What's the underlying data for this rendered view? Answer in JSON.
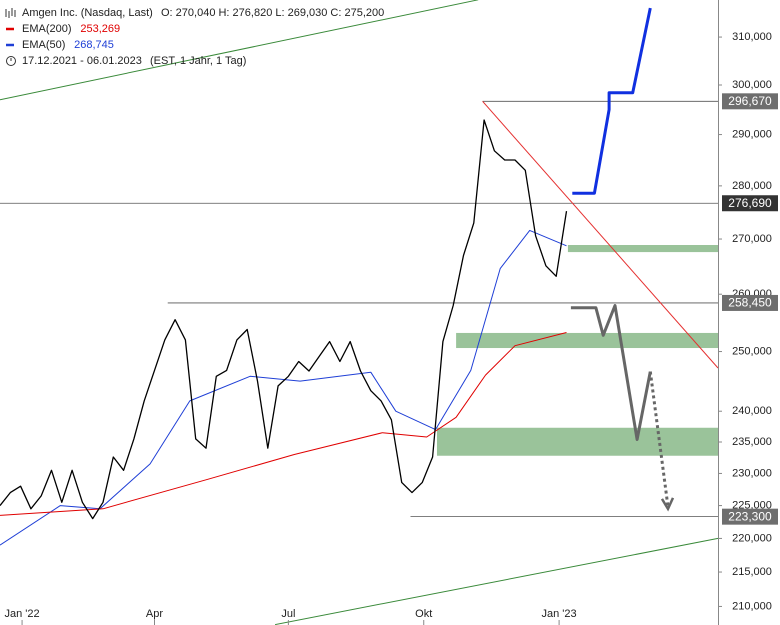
{
  "chart_data": {
    "type": "line",
    "title": "Amgen Inc. (Nasdaq, Last)",
    "ohlc": "O: 270,040  H: 276,820  L: 269,030  C: 275,200",
    "period": "17.12.2021 - 06.01.2023",
    "period_note": "(EST, 1 Jahr, 1 Tag)",
    "y_scale": "log",
    "xlim": [
      0,
      488
    ],
    "ylim": [
      207350,
      317960
    ],
    "xticks": [
      {
        "value": 15,
        "label": "Jan '22"
      },
      {
        "value": 105,
        "label": "Apr"
      },
      {
        "value": 196,
        "label": "Jul"
      },
      {
        "value": 288,
        "label": "Okt"
      },
      {
        "value": 380,
        "label": "Jan '23"
      }
    ],
    "yticks": [
      {
        "value": 310000,
        "label": "310,000"
      },
      {
        "value": 300000,
        "label": "300,000"
      },
      {
        "value": 290000,
        "label": "290,000"
      },
      {
        "value": 280000,
        "label": "280,000"
      },
      {
        "value": 270000,
        "label": "270,000"
      },
      {
        "value": 260000,
        "label": "260,000"
      },
      {
        "value": 250000,
        "label": "250,000"
      },
      {
        "value": 240000,
        "label": "240,000"
      },
      {
        "value": 235000,
        "label": "235,000"
      },
      {
        "value": 230000,
        "label": "230,000"
      },
      {
        "value": 225000,
        "label": "225,000"
      },
      {
        "value": 220000,
        "label": "220,000"
      },
      {
        "value": 215000,
        "label": "215,000"
      },
      {
        "value": 210000,
        "label": "210,000"
      }
    ],
    "series": [
      {
        "name": "Amgen Inc. (Nasdaq, Last)",
        "color": "#000000",
        "width": 1.3,
        "x": [
          0,
          7,
          14,
          21,
          28,
          35,
          42,
          49,
          56,
          63,
          70,
          77,
          84,
          91,
          98,
          105,
          112,
          119,
          126,
          133,
          140,
          147,
          154,
          161,
          168,
          175,
          182,
          189,
          196,
          203,
          210,
          217,
          224,
          231,
          238,
          245,
          252,
          259,
          266,
          273,
          280,
          287,
          294,
          301,
          308,
          315,
          322,
          329,
          336,
          343,
          350,
          357,
          364,
          371,
          378,
          385
        ],
        "values": [
          225000,
          227000,
          228000,
          224500,
          226500,
          230500,
          225500,
          230500,
          225500,
          223000,
          225500,
          232600,
          230500,
          235500,
          241700,
          246800,
          252000,
          255500,
          252000,
          235500,
          234000,
          245800,
          246800,
          252000,
          253800,
          245000,
          234000,
          244200,
          245800,
          248300,
          246700,
          249200,
          251700,
          248300,
          251700,
          246700,
          243400,
          241700,
          238600,
          228600,
          227000,
          228600,
          232600,
          251700,
          258000,
          267000,
          273000,
          292900,
          286800,
          285000,
          285000,
          283000,
          270600,
          265100,
          263200,
          275200
        ]
      },
      {
        "name": "EMA(200)",
        "color": "#e00000",
        "width": 1,
        "legend_value": "253,269",
        "x": [
          0,
          70,
          140,
          200,
          260,
          290,
          310,
          330,
          350,
          385
        ],
        "values": [
          223500,
          224500,
          229000,
          233000,
          236500,
          235800,
          239000,
          246000,
          251000,
          253269
        ]
      },
      {
        "name": "EMA(50)",
        "color": "#1f3fd6",
        "width": 1,
        "legend_value": "268,745",
        "x": [
          0,
          41,
          68,
          102,
          129,
          170,
          204,
          252,
          269,
          296,
          320,
          340,
          360,
          385
        ],
        "values": [
          219000,
          225000,
          224500,
          231500,
          241700,
          245800,
          245000,
          246500,
          240000,
          237000,
          246800,
          264600,
          271600,
          268745
        ]
      }
    ],
    "levels": [
      {
        "value": 296670,
        "label": "296,670",
        "x_start": 328,
        "color": "#6e6e6e"
      },
      {
        "value": 276690,
        "label": "276,690",
        "x_start": 0,
        "color": "#333333"
      },
      {
        "value": 258450,
        "label": "258,450",
        "x_start": 114,
        "color": "#6e6e6e"
      },
      {
        "value": 223300,
        "label": "223,300",
        "x_start": 279,
        "color": "#6e6e6e"
      }
    ],
    "zones": [
      {
        "low": 267600,
        "high": 268900,
        "x_start": 386,
        "color": "#8fbc8f"
      },
      {
        "low": 250600,
        "high": 253200,
        "x_start": 310,
        "color": "#8fbc8f"
      },
      {
        "low": 232800,
        "high": 237300,
        "x_start": 297,
        "color": "#8fbc8f"
      }
    ],
    "trendlines": [
      {
        "x": [
          328,
          488
        ],
        "values": [
          296670,
          247200
        ],
        "color": "#e53030",
        "width": 1,
        "dash": false
      },
      {
        "x": [
          0,
          325
        ],
        "values": [
          297000,
          318000
        ],
        "color": "#3a8a3a",
        "width": 1,
        "dash": false
      },
      {
        "x": [
          187,
          488
        ],
        "values": [
          207400,
          220000
        ],
        "color": "#3a8a3a",
        "width": 1,
        "dash": false
      }
    ],
    "projections": [
      {
        "x": [
          389,
          404,
          414,
          414,
          430,
          442
        ],
        "values": [
          278600,
          278600,
          295000,
          298400,
          298400,
          316200
        ],
        "color": "#1030e0",
        "width": 3,
        "dash": false
      },
      {
        "x": [
          388,
          405,
          410,
          418,
          433,
          442
        ],
        "values": [
          257600,
          257600,
          252800,
          258000,
          235400,
          246600
        ],
        "color": "#666666",
        "width": 3,
        "dash": false
      },
      {
        "x": [
          442,
          454
        ],
        "values": [
          246600,
          224800
        ],
        "color": "#666666",
        "width": 3,
        "dash": true
      }
    ]
  }
}
